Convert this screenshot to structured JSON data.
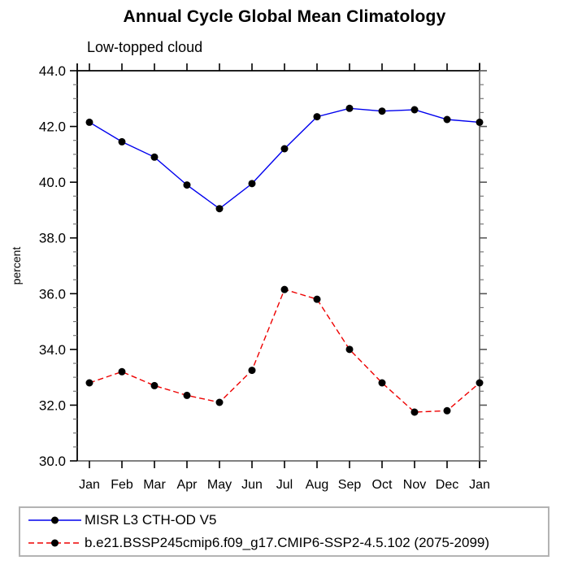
{
  "chart_data": {
    "type": "line",
    "title": "Annual Cycle Global Mean Climatology",
    "subtitle": "Low-topped cloud",
    "ylabel": "percent",
    "x_categories": [
      "Jan",
      "Feb",
      "Mar",
      "Apr",
      "May",
      "Jun",
      "Jul",
      "Aug",
      "Sep",
      "Oct",
      "Nov",
      "Dec",
      "Jan"
    ],
    "ylim": [
      30.0,
      44.0
    ],
    "y_major_step": 2.0,
    "y_minor_step": 0.5,
    "y_tick_labels": [
      "44.0",
      "42.0",
      "40.0",
      "38.0",
      "36.0",
      "34.0",
      "32.0",
      "30.0"
    ],
    "grid": false,
    "legend_position": "bottom-left-box",
    "series": [
      {
        "name": "MISR L3 CTH-OD V5",
        "color": "#0000ee",
        "line_style": "solid",
        "marker": "filled-circle",
        "marker_color": "#000000",
        "values": [
          42.15,
          41.45,
          40.9,
          39.9,
          39.05,
          39.95,
          41.2,
          42.35,
          42.65,
          42.55,
          42.6,
          42.25,
          42.15
        ]
      },
      {
        "name": "b.e21.BSSP245cmip6.f09_g17.CMIP6-SSP2-4.5.102 (2075-2099)",
        "color": "#ee0000",
        "line_style": "dashed",
        "marker": "filled-circle",
        "marker_color": "#000000",
        "values": [
          32.8,
          33.2,
          32.7,
          32.35,
          32.1,
          33.25,
          36.15,
          35.8,
          34.0,
          32.8,
          31.75,
          31.8,
          32.8
        ]
      }
    ],
    "colors": {
      "axis": "#000000",
      "secondary_axis": "#6e6e6e",
      "minor_tick": "#777777",
      "legend_border": "#b3b3b3",
      "background": "#ffffff"
    }
  }
}
